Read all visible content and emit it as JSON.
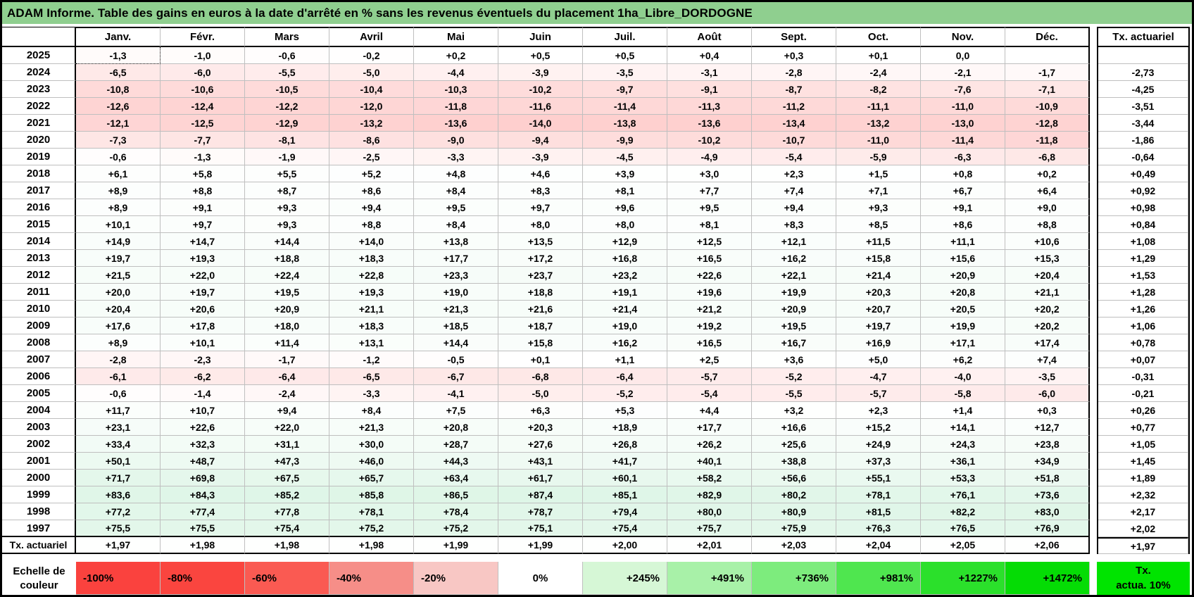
{
  "title": "ADAM Informe. Table des gains en euros à la date d'arrêté en % sans les revenus éventuels du placement 1ha_Libre_DORDOGNE",
  "colors": {
    "title_bar": "#8FCF8F",
    "grid_line": "#BFBFBF",
    "border": "#000000"
  },
  "heatmap": {
    "negative_color": "#FA423E",
    "negative_span": 55,
    "positive_color": "#1EBE5A",
    "positive_span": 600
  },
  "table": {
    "months": [
      "Janv.",
      "Févr.",
      "Mars",
      "Avril",
      "Mai",
      "Juin",
      "Juil.",
      "Août",
      "Sept.",
      "Oct.",
      "Nov.",
      "Déc."
    ],
    "tx_header": "Tx. actuariel",
    "tx_row_label": "Tx. actuariel",
    "rows": [
      {
        "year": "2025",
        "values": [
          "-1,3",
          "-1,0",
          "-0,6",
          "-0,2",
          "+0,2",
          "+0,5",
          "+0,5",
          "+0,4",
          "+0,3",
          "+0,1",
          "0,0",
          ""
        ],
        "tx": ""
      },
      {
        "year": "2024",
        "values": [
          "-6,5",
          "-6,0",
          "-5,5",
          "-5,0",
          "-4,4",
          "-3,9",
          "-3,5",
          "-3,1",
          "-2,8",
          "-2,4",
          "-2,1",
          "-1,7"
        ],
        "tx": "-2,73"
      },
      {
        "year": "2023",
        "values": [
          "-10,8",
          "-10,6",
          "-10,5",
          "-10,4",
          "-10,3",
          "-10,2",
          "-9,7",
          "-9,1",
          "-8,7",
          "-8,2",
          "-7,6",
          "-7,1"
        ],
        "tx": "-4,25"
      },
      {
        "year": "2022",
        "values": [
          "-12,6",
          "-12,4",
          "-12,2",
          "-12,0",
          "-11,8",
          "-11,6",
          "-11,4",
          "-11,3",
          "-11,2",
          "-11,1",
          "-11,0",
          "-10,9"
        ],
        "tx": "-3,51"
      },
      {
        "year": "2021",
        "values": [
          "-12,1",
          "-12,5",
          "-12,9",
          "-13,2",
          "-13,6",
          "-14,0",
          "-13,8",
          "-13,6",
          "-13,4",
          "-13,2",
          "-13,0",
          "-12,8"
        ],
        "tx": "-3,44"
      },
      {
        "year": "2020",
        "values": [
          "-7,3",
          "-7,7",
          "-8,1",
          "-8,6",
          "-9,0",
          "-9,4",
          "-9,9",
          "-10,2",
          "-10,7",
          "-11,0",
          "-11,4",
          "-11,8"
        ],
        "tx": "-1,86"
      },
      {
        "year": "2019",
        "values": [
          "-0,6",
          "-1,3",
          "-1,9",
          "-2,5",
          "-3,3",
          "-3,9",
          "-4,5",
          "-4,9",
          "-5,4",
          "-5,9",
          "-6,3",
          "-6,8"
        ],
        "tx": "-0,64"
      },
      {
        "year": "2018",
        "values": [
          "+6,1",
          "+5,8",
          "+5,5",
          "+5,2",
          "+4,8",
          "+4,6",
          "+3,9",
          "+3,0",
          "+2,3",
          "+1,5",
          "+0,8",
          "+0,2"
        ],
        "tx": "+0,49"
      },
      {
        "year": "2017",
        "values": [
          "+8,9",
          "+8,8",
          "+8,7",
          "+8,6",
          "+8,4",
          "+8,3",
          "+8,1",
          "+7,7",
          "+7,4",
          "+7,1",
          "+6,7",
          "+6,4"
        ],
        "tx": "+0,92"
      },
      {
        "year": "2016",
        "values": [
          "+8,9",
          "+9,1",
          "+9,3",
          "+9,4",
          "+9,5",
          "+9,7",
          "+9,6",
          "+9,5",
          "+9,4",
          "+9,3",
          "+9,1",
          "+9,0"
        ],
        "tx": "+0,98"
      },
      {
        "year": "2015",
        "values": [
          "+10,1",
          "+9,7",
          "+9,3",
          "+8,8",
          "+8,4",
          "+8,0",
          "+8,0",
          "+8,1",
          "+8,3",
          "+8,5",
          "+8,6",
          "+8,8"
        ],
        "tx": "+0,84"
      },
      {
        "year": "2014",
        "values": [
          "+14,9",
          "+14,7",
          "+14,4",
          "+14,0",
          "+13,8",
          "+13,5",
          "+12,9",
          "+12,5",
          "+12,1",
          "+11,5",
          "+11,1",
          "+10,6"
        ],
        "tx": "+1,08"
      },
      {
        "year": "2013",
        "values": [
          "+19,7",
          "+19,3",
          "+18,8",
          "+18,3",
          "+17,7",
          "+17,2",
          "+16,8",
          "+16,5",
          "+16,2",
          "+15,8",
          "+15,6",
          "+15,3"
        ],
        "tx": "+1,29"
      },
      {
        "year": "2012",
        "values": [
          "+21,5",
          "+22,0",
          "+22,4",
          "+22,8",
          "+23,3",
          "+23,7",
          "+23,2",
          "+22,6",
          "+22,1",
          "+21,4",
          "+20,9",
          "+20,4"
        ],
        "tx": "+1,53"
      },
      {
        "year": "2011",
        "values": [
          "+20,0",
          "+19,7",
          "+19,5",
          "+19,3",
          "+19,0",
          "+18,8",
          "+19,1",
          "+19,6",
          "+19,9",
          "+20,3",
          "+20,8",
          "+21,1"
        ],
        "tx": "+1,28"
      },
      {
        "year": "2010",
        "values": [
          "+20,4",
          "+20,6",
          "+20,9",
          "+21,1",
          "+21,3",
          "+21,6",
          "+21,4",
          "+21,2",
          "+20,9",
          "+20,7",
          "+20,5",
          "+20,2"
        ],
        "tx": "+1,26"
      },
      {
        "year": "2009",
        "values": [
          "+17,6",
          "+17,8",
          "+18,0",
          "+18,3",
          "+18,5",
          "+18,7",
          "+19,0",
          "+19,2",
          "+19,5",
          "+19,7",
          "+19,9",
          "+20,2"
        ],
        "tx": "+1,06"
      },
      {
        "year": "2008",
        "values": [
          "+8,9",
          "+10,1",
          "+11,4",
          "+13,1",
          "+14,4",
          "+15,8",
          "+16,2",
          "+16,5",
          "+16,7",
          "+16,9",
          "+17,1",
          "+17,4"
        ],
        "tx": "+0,78"
      },
      {
        "year": "2007",
        "values": [
          "-2,8",
          "-2,3",
          "-1,7",
          "-1,2",
          "-0,5",
          "+0,1",
          "+1,1",
          "+2,5",
          "+3,6",
          "+5,0",
          "+6,2",
          "+7,4"
        ],
        "tx": "+0,07"
      },
      {
        "year": "2006",
        "values": [
          "-6,1",
          "-6,2",
          "-6,4",
          "-6,5",
          "-6,7",
          "-6,8",
          "-6,4",
          "-5,7",
          "-5,2",
          "-4,7",
          "-4,0",
          "-3,5"
        ],
        "tx": "-0,31"
      },
      {
        "year": "2005",
        "values": [
          "-0,6",
          "-1,4",
          "-2,4",
          "-3,3",
          "-4,1",
          "-5,0",
          "-5,2",
          "-5,4",
          "-5,5",
          "-5,7",
          "-5,8",
          "-6,0"
        ],
        "tx": "-0,21"
      },
      {
        "year": "2004",
        "values": [
          "+11,7",
          "+10,7",
          "+9,4",
          "+8,4",
          "+7,5",
          "+6,3",
          "+5,3",
          "+4,4",
          "+3,2",
          "+2,3",
          "+1,4",
          "+0,3"
        ],
        "tx": "+0,26"
      },
      {
        "year": "2003",
        "values": [
          "+23,1",
          "+22,6",
          "+22,0",
          "+21,3",
          "+20,8",
          "+20,3",
          "+18,9",
          "+17,7",
          "+16,6",
          "+15,2",
          "+14,1",
          "+12,7"
        ],
        "tx": "+0,77"
      },
      {
        "year": "2002",
        "values": [
          "+33,4",
          "+32,3",
          "+31,1",
          "+30,0",
          "+28,7",
          "+27,6",
          "+26,8",
          "+26,2",
          "+25,6",
          "+24,9",
          "+24,3",
          "+23,8"
        ],
        "tx": "+1,05"
      },
      {
        "year": "2001",
        "values": [
          "+50,1",
          "+48,7",
          "+47,3",
          "+46,0",
          "+44,3",
          "+43,1",
          "+41,7",
          "+40,1",
          "+38,8",
          "+37,3",
          "+36,1",
          "+34,9"
        ],
        "tx": "+1,45"
      },
      {
        "year": "2000",
        "values": [
          "+71,7",
          "+69,8",
          "+67,5",
          "+65,7",
          "+63,4",
          "+61,7",
          "+60,1",
          "+58,2",
          "+56,6",
          "+55,1",
          "+53,3",
          "+51,8"
        ],
        "tx": "+1,89"
      },
      {
        "year": "1999",
        "values": [
          "+83,6",
          "+84,3",
          "+85,2",
          "+85,8",
          "+86,5",
          "+87,4",
          "+85,1",
          "+82,9",
          "+80,2",
          "+78,1",
          "+76,1",
          "+73,6"
        ],
        "tx": "+2,32"
      },
      {
        "year": "1998",
        "values": [
          "+77,2",
          "+77,4",
          "+77,8",
          "+78,1",
          "+78,4",
          "+78,7",
          "+79,4",
          "+80,0",
          "+80,9",
          "+81,5",
          "+82,2",
          "+83,0"
        ],
        "tx": "+2,17"
      },
      {
        "year": "1997",
        "values": [
          "+75,5",
          "+75,5",
          "+75,4",
          "+75,2",
          "+75,2",
          "+75,1",
          "+75,4",
          "+75,7",
          "+75,9",
          "+76,3",
          "+76,5",
          "+76,9"
        ],
        "tx": "+2,02"
      }
    ],
    "tx_row": {
      "values": [
        "+1,97",
        "+1,98",
        "+1,98",
        "+1,98",
        "+1,99",
        "+1,99",
        "+2,00",
        "+2,01",
        "+2,03",
        "+2,04",
        "+2,05",
        "+2,06"
      ],
      "tx": "+1,97"
    }
  },
  "legend": {
    "label_line1": "Echelle de",
    "label_line2": "couleur",
    "entries": [
      {
        "label": "-100%",
        "color": "#FA423E",
        "align": "left"
      },
      {
        "label": "-80%",
        "color": "#FA453F",
        "align": "left"
      },
      {
        "label": "-60%",
        "color": "#FA5A52",
        "align": "left"
      },
      {
        "label": "-40%",
        "color": "#F68E88",
        "align": "left"
      },
      {
        "label": "-20%",
        "color": "#F8C7C4",
        "align": "left"
      },
      {
        "label": "0%",
        "color": "#FFFFFF",
        "align": "center"
      },
      {
        "label": "+245%",
        "color": "#D6F7D6",
        "align": "right"
      },
      {
        "label": "+491%",
        "color": "#A8F1A8",
        "align": "right"
      },
      {
        "label": "+736%",
        "color": "#7DEC7D",
        "align": "right"
      },
      {
        "label": "+981%",
        "color": "#4FE64F",
        "align": "right"
      },
      {
        "label": "+1227%",
        "color": "#2BE02B",
        "align": "right"
      },
      {
        "label": "+1472%",
        "color": "#05DC05",
        "align": "right"
      }
    ],
    "tx_box": {
      "line1": "Tx.",
      "line2": "actua. 10%",
      "color": "#00E400"
    }
  }
}
